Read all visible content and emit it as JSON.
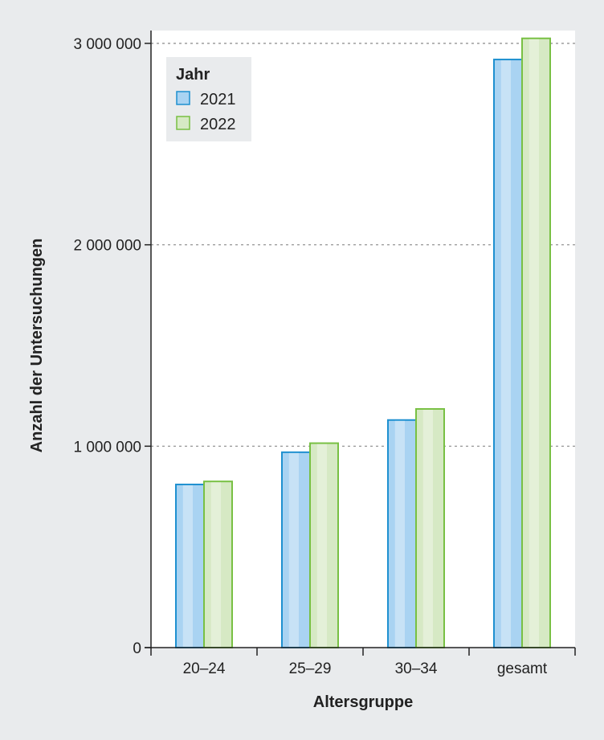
{
  "chart_data": {
    "type": "bar",
    "categories": [
      "20–24",
      "25–29",
      "30–34",
      "gesamt"
    ],
    "series": [
      {
        "name": "2021",
        "values": [
          810000,
          970000,
          1130000,
          2920000
        ],
        "fill": "#a9d3f2",
        "stroke": "#1e90d0"
      },
      {
        "name": "2022",
        "values": [
          825000,
          1015000,
          1185000,
          3025000
        ],
        "fill": "#d6e9c4",
        "stroke": "#78c043"
      }
    ],
    "xlabel": "Altersgruppe",
    "ylabel": "Anzahl der Untersuchungen",
    "ylim": [
      0,
      3000000
    ],
    "yticks": [
      0,
      1000000,
      2000000,
      3000000
    ],
    "ytick_labels": [
      "0",
      "1 000 000",
      "2 000 000",
      "3 000 000"
    ],
    "grid": true,
    "legend": {
      "title": "Jahr",
      "position": "top-left"
    }
  }
}
